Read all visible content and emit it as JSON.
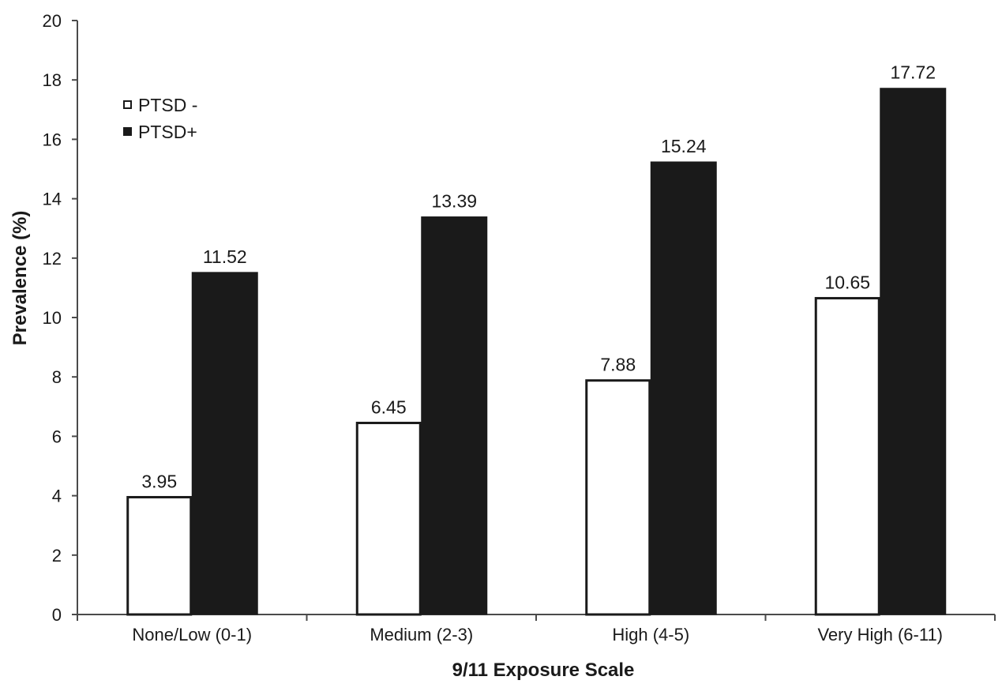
{
  "chart_data": {
    "type": "bar",
    "title": "",
    "xlabel": "9/11 Exposure Scale",
    "ylabel": "Prevalence (%)",
    "ylim": [
      0,
      20
    ],
    "yticks": [
      0,
      2,
      4,
      6,
      8,
      10,
      12,
      14,
      16,
      18,
      20
    ],
    "grid": false,
    "legend_position": "top-left",
    "categories": [
      "None/Low (0-1)",
      "Medium (2-3)",
      "High (4-5)",
      "Very High (6-11)"
    ],
    "series": [
      {
        "name": "PTSD -",
        "values": [
          3.95,
          6.45,
          7.88,
          10.65
        ],
        "labels": [
          "3.95",
          "6.45",
          "7.88",
          "10.65"
        ],
        "fill": "#ffffff",
        "stroke": "#1a1a1a"
      },
      {
        "name": "PTSD+",
        "values": [
          11.52,
          13.39,
          15.24,
          17.72
        ],
        "labels": [
          "11.52",
          "13.39",
          "15.24",
          "17.72"
        ],
        "fill": "#1a1a1a",
        "stroke": "#1a1a1a"
      }
    ]
  }
}
